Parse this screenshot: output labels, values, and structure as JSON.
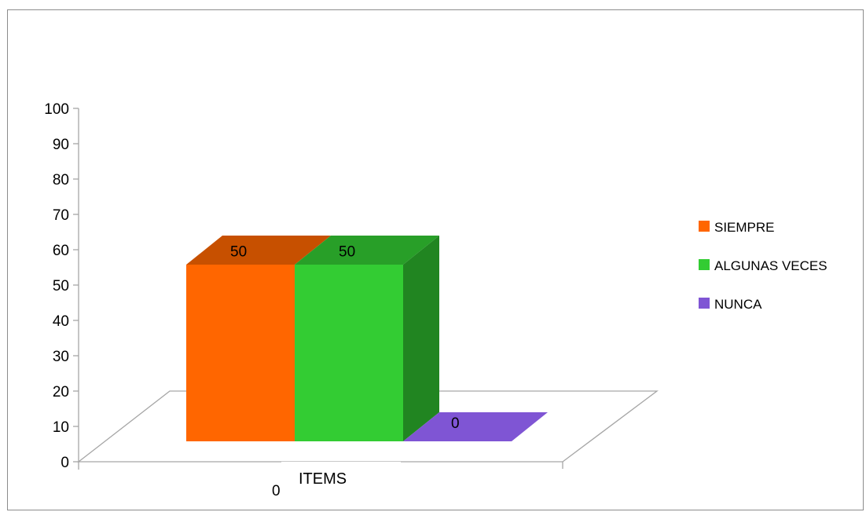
{
  "chart_data": {
    "type": "bar",
    "title": "",
    "xlabel": "ITEMS",
    "ylabel": "",
    "ylim": [
      0,
      100
    ],
    "y_ticks": [
      "0",
      "10",
      "20",
      "30",
      "40",
      "50",
      "60",
      "70",
      "80",
      "90",
      "100"
    ],
    "categories": [
      "0"
    ],
    "series": [
      {
        "name": "SIEMPRE",
        "values": [
          50
        ],
        "value_labels": [
          "50"
        ],
        "color": "#FF6600"
      },
      {
        "name": "ALGUNAS VECES",
        "values": [
          50
        ],
        "value_labels": [
          "50"
        ],
        "color": "#33CC33"
      },
      {
        "name": "NUNCA",
        "values": [
          0
        ],
        "value_labels": [
          "0"
        ],
        "color": "#7F55D4"
      }
    ],
    "legend_position": "right",
    "three_d": true,
    "grid": false
  }
}
